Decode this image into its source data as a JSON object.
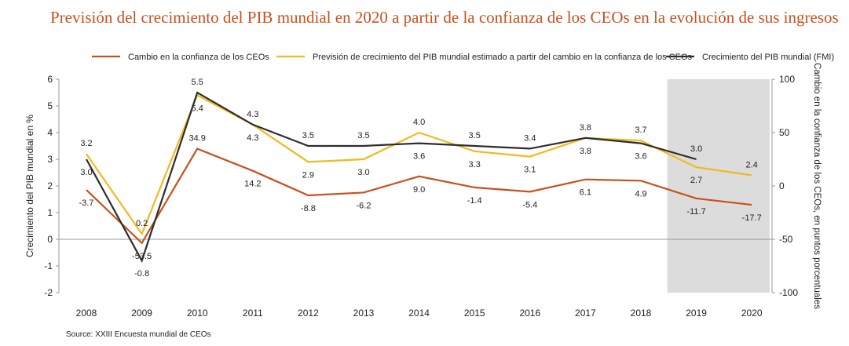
{
  "title": "Previsión del crecimiento del PIB mundial en 2020 a partir de la confianza de los CEOs en la evolución de sus ingresos",
  "source": "Source: XXIII Encuesta mundial de CEOs",
  "chart_data": {
    "type": "line",
    "title": "Previsión del crecimiento del PIB mundial en 2020 a partir de la confianza de los CEOs en la evolución de sus ingresos",
    "categories": [
      "2008",
      "2009",
      "2010",
      "2011",
      "2012",
      "2013",
      "2014",
      "2015",
      "2016",
      "2017",
      "2018",
      "2019",
      "2020"
    ],
    "ylabel": "Crecimiento del PIB mundial en %",
    "ylim": [
      -2,
      6
    ],
    "yticks": [
      "-2",
      "-1",
      "0",
      "1",
      "2",
      "3",
      "4",
      "5",
      "6"
    ],
    "y2label": "Cambio en la confianza de los CEOs, en puntos porcentuales",
    "y2lim": [
      -100,
      100
    ],
    "y2ticks": [
      "-100",
      "-50",
      "0",
      "50",
      "100"
    ],
    "legend_position": "top",
    "shaded_region": [
      "2019",
      "2020"
    ],
    "series": [
      {
        "name": "Cambio en la confianza de los CEOs",
        "axis": "right",
        "color": "#c9501c",
        "values": [
          -3.7,
          -53.5,
          34.9,
          14.2,
          -8.8,
          -6.2,
          9.0,
          -1.4,
          -5.4,
          6.1,
          4.9,
          -11.7,
          -17.7
        ],
        "labels": [
          "-3.7",
          "-53.5",
          "34.9",
          "14.2",
          "-8.8",
          "-6.2",
          "9.0",
          "-1.4",
          "-5.4",
          "6.1",
          "4.9",
          "-11.7",
          "-17.7"
        ]
      },
      {
        "name": "Previsión de crecimiento del PIB mundial estimado a partir del cambio en la confianza de los CEOs",
        "axis": "left",
        "color": "#f2b91e",
        "values": [
          3.2,
          0.2,
          5.4,
          4.3,
          2.9,
          3.0,
          4.0,
          3.3,
          3.1,
          3.8,
          3.7,
          2.7,
          2.4
        ],
        "labels": [
          "3.2",
          "0.2",
          "5.4",
          "4.3",
          "2.9",
          "3.0",
          "4.0",
          "3.3",
          "3.1",
          "3.8",
          "3.7",
          "2.7",
          "2.4"
        ]
      },
      {
        "name": "Crecimiento del PIB mundial (FMI)",
        "axis": "left",
        "color": "#2d2d2d",
        "values": [
          3.0,
          -0.8,
          5.5,
          4.3,
          3.5,
          3.5,
          3.6,
          3.5,
          3.4,
          3.8,
          3.6,
          3.0,
          null
        ],
        "labels": [
          "3.0",
          "-0.8",
          "5.5",
          "4.3",
          "3.5",
          "3.5",
          "3.6",
          "3.5",
          "3.4",
          "3.8",
          "3.6",
          "3.0",
          ""
        ]
      }
    ]
  }
}
